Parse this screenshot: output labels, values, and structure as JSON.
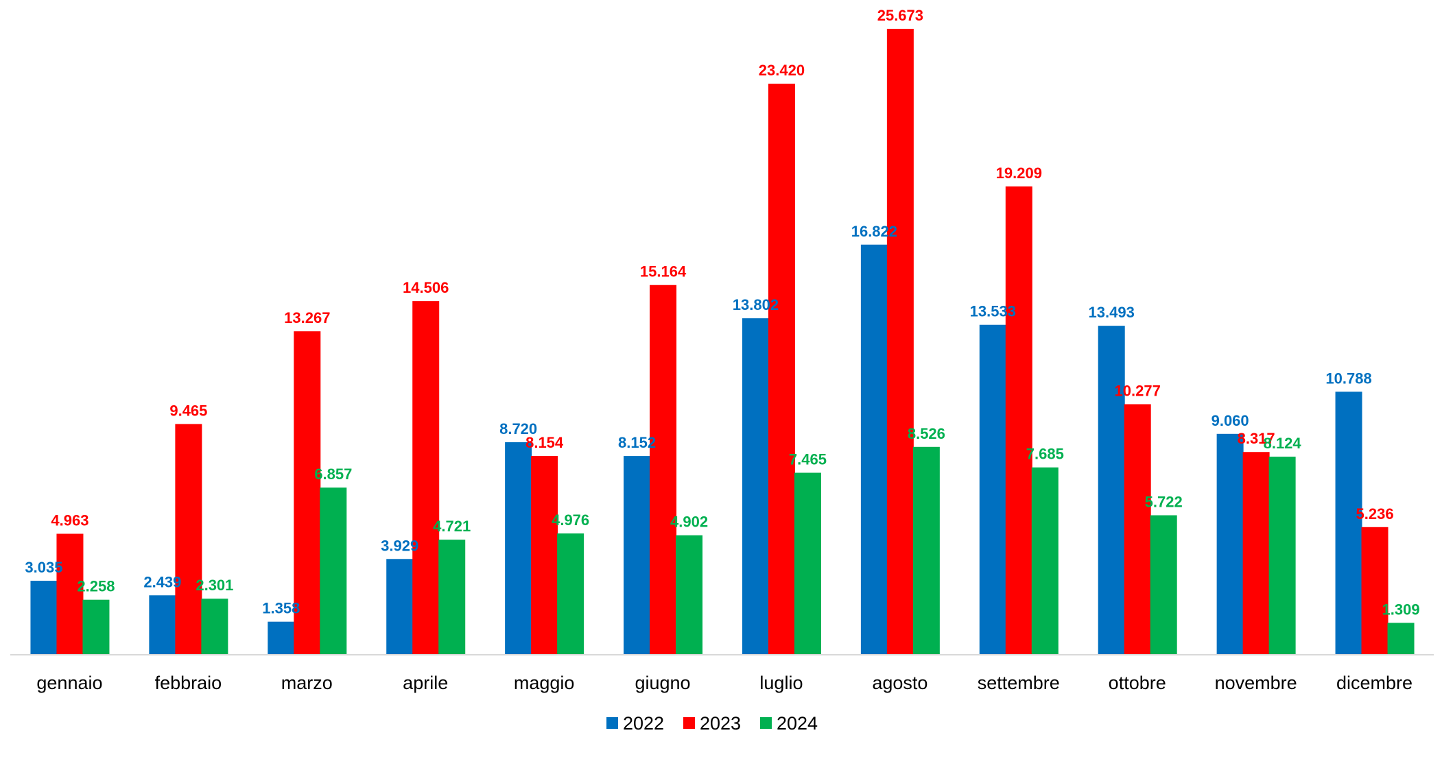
{
  "chart_data": {
    "type": "bar",
    "title": "",
    "xlabel": "",
    "ylabel": "",
    "ylim": [
      0,
      27000
    ],
    "grid": false,
    "legend_position": "bottom-center",
    "categories": [
      "gennaio",
      "febbraio",
      "marzo",
      "aprile",
      "maggio",
      "giugno",
      "luglio",
      "agosto",
      "settembre",
      "ottobre",
      "novembre",
      "dicembre"
    ],
    "series": [
      {
        "name": "2022",
        "color": "#0070C0",
        "values": [
          3035,
          2439,
          1358,
          3929,
          8720,
          8152,
          13802,
          16822,
          13533,
          13493,
          9060,
          10788
        ],
        "labels": [
          "3.035",
          "2.439",
          "1.358",
          "3.929",
          "8.720",
          "8.152",
          "13.802",
          "16.822",
          "13.533",
          "13.493",
          "9.060",
          "10.788"
        ]
      },
      {
        "name": "2023",
        "color": "#FF0000",
        "values": [
          4963,
          9465,
          13267,
          14506,
          8154,
          15164,
          23420,
          25673,
          19209,
          10277,
          8317,
          5236
        ],
        "labels": [
          "4.963",
          "9.465",
          "13.267",
          "14.506",
          "8.154",
          "15.164",
          "23.420",
          "25.673",
          "19.209",
          "10.277",
          "8.317",
          "5.236"
        ]
      },
      {
        "name": "2024",
        "color": "#00B050",
        "values": [
          2258,
          2301,
          6857,
          4721,
          4976,
          4902,
          7465,
          8526,
          7685,
          5722,
          8124,
          1309
        ],
        "labels": [
          "2.258",
          "2.301",
          "6.857",
          "4.721",
          "4.976",
          "4.902",
          "7.465",
          "8.526",
          "7.685",
          "5.722",
          "8.124",
          "1.309"
        ]
      }
    ]
  }
}
